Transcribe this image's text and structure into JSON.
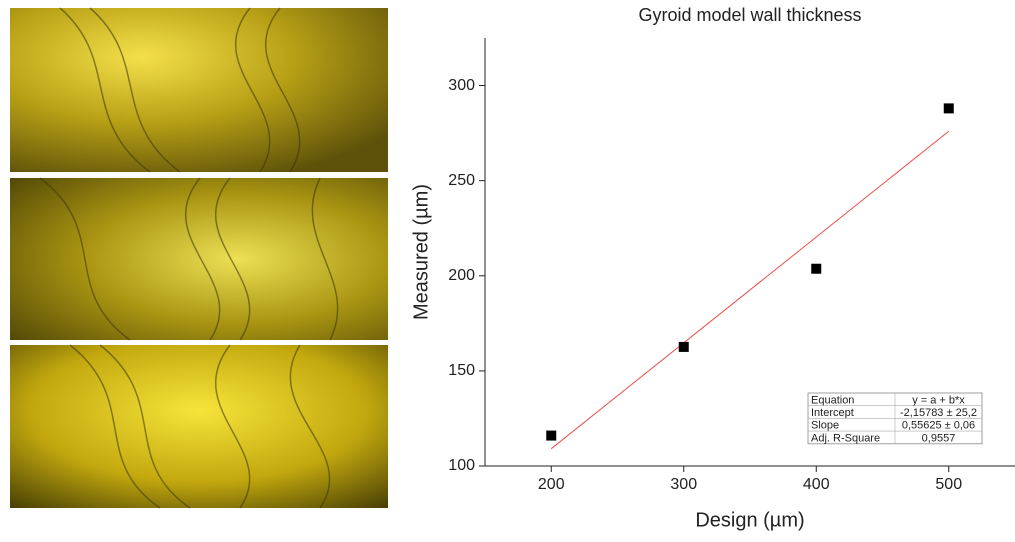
{
  "chart_data": {
    "type": "scatter",
    "title": "Gyroid model wall thickness",
    "x_label": "Design (µm)",
    "y_label": "Measured (µm)",
    "x": [
      200,
      300,
      400,
      500
    ],
    "values": [
      116,
      162.6,
      203.7,
      288
    ],
    "color": "#000000",
    "fit": {
      "x": [
        200,
        500
      ],
      "values": [
        109.1,
        276.0
      ],
      "color": "#e8524a"
    },
    "xlim": [
      150,
      550
    ],
    "xticks": [
      200,
      300,
      400,
      500
    ],
    "ylim": [
      100,
      325
    ],
    "yticks": [
      100,
      150,
      200,
      250,
      300
    ],
    "stats_table": [
      [
        "Equation",
        "y = a + b*x"
      ],
      [
        "Intercept",
        "-2,15783 ± 25,2"
      ],
      [
        "Slope",
        "0,55625 ± 0,06"
      ],
      [
        "Adj. R-Square",
        "0,9557"
      ]
    ]
  }
}
